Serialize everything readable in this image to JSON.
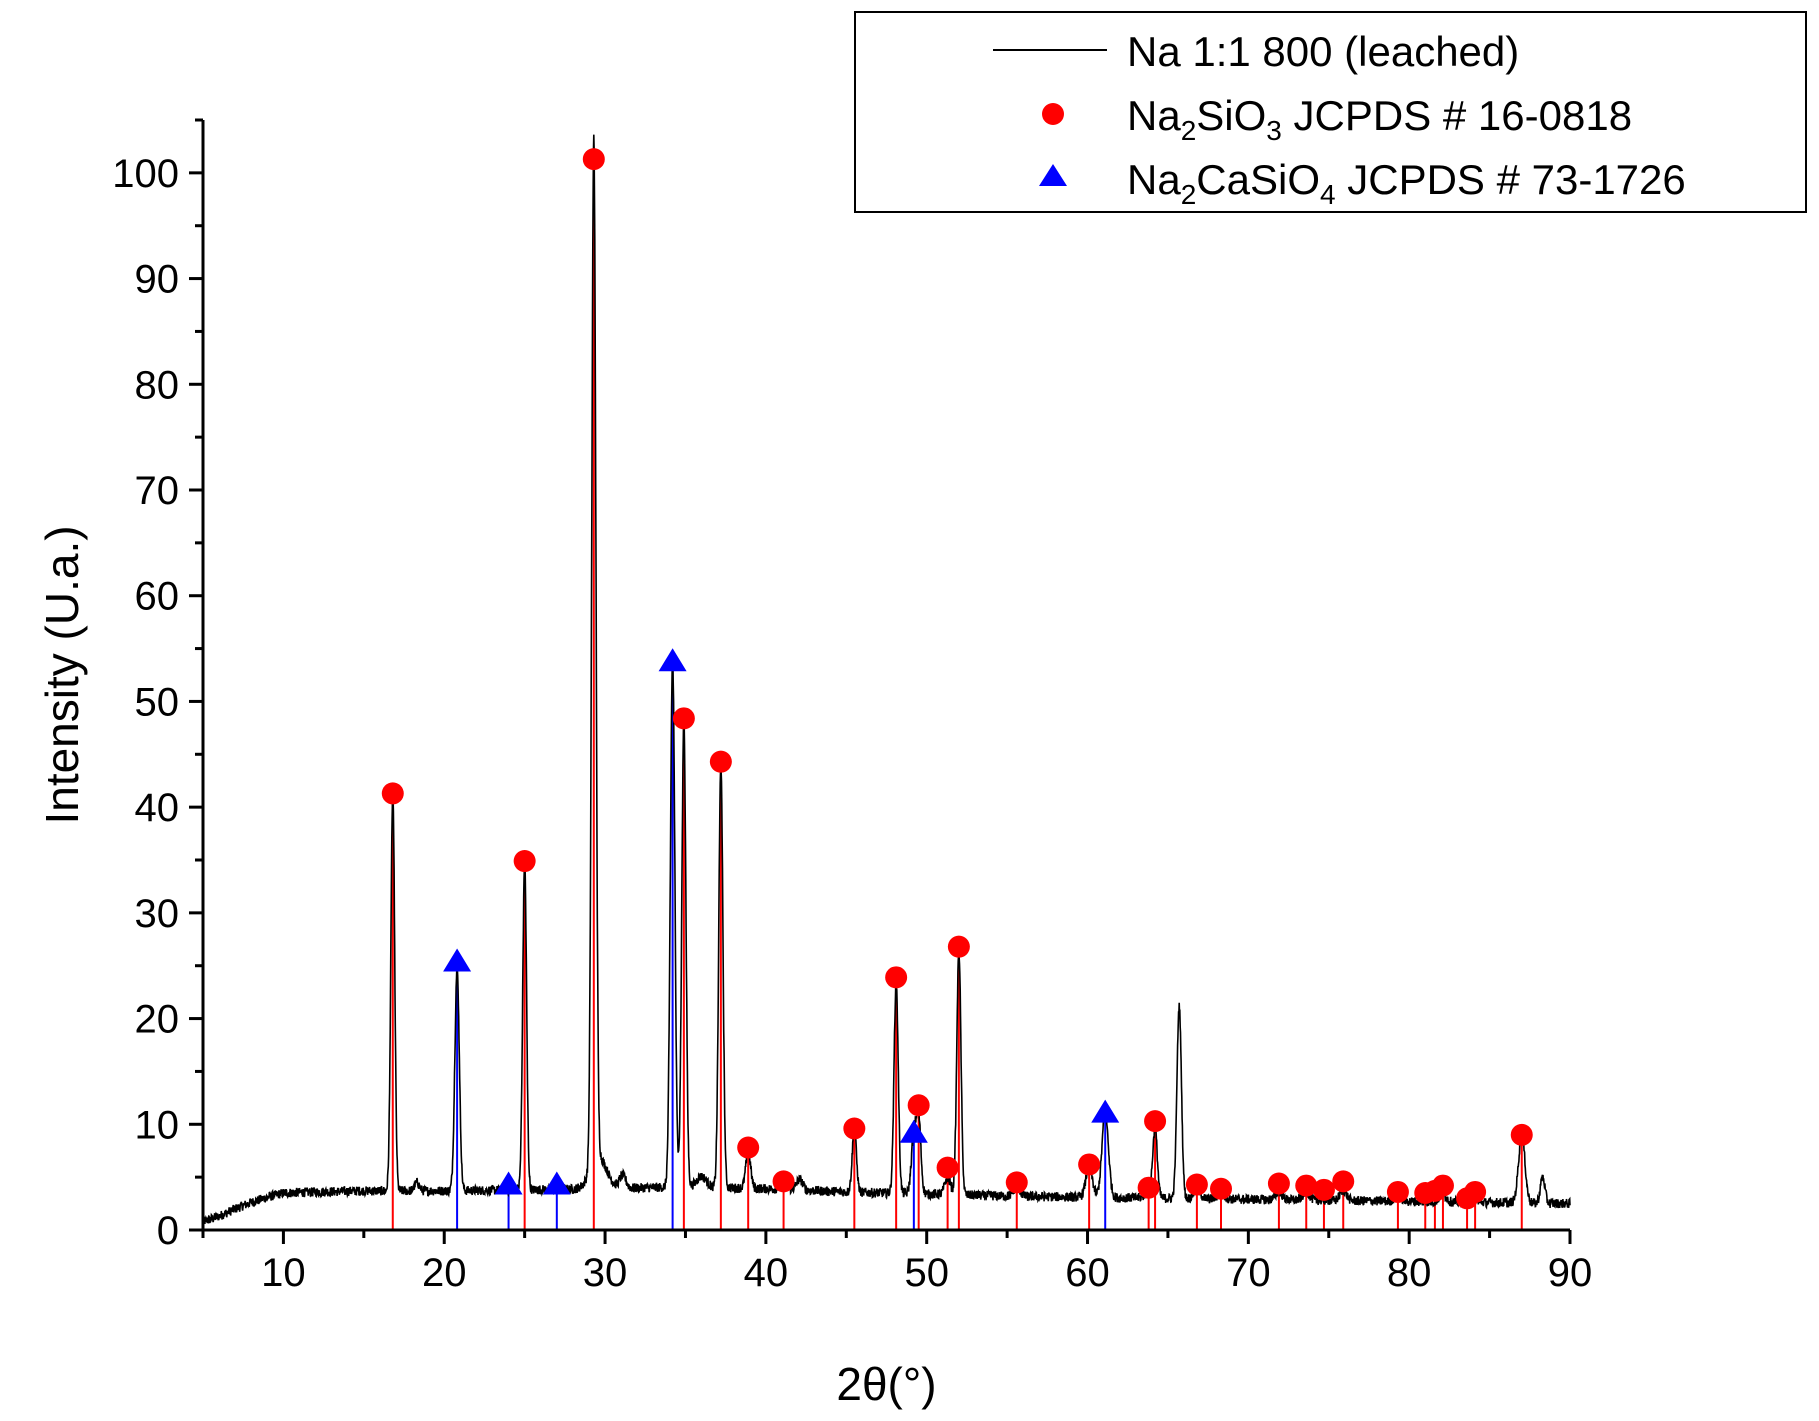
{
  "chart_data": {
    "type": "line",
    "xlabel": "2θ(°)",
    "ylabel": "Intensity (U.a.)",
    "xlim": [
      5,
      90
    ],
    "ylim": [
      0,
      105
    ],
    "x_ticks": [
      "10",
      "20",
      "30",
      "40",
      "50",
      "60",
      "70",
      "80",
      "90"
    ],
    "y_ticks": [
      "0",
      "10",
      "20",
      "30",
      "40",
      "50",
      "60",
      "70",
      "80",
      "90",
      "100"
    ],
    "legend": {
      "position": "top-right",
      "entries": [
        {
          "key": "line",
          "label": "Na 1:1 800 (leached)"
        },
        {
          "key": "na2sio3",
          "parts": [
            {
              "t": "Na",
              "sub": false
            },
            {
              "t": "2",
              "sub": true
            },
            {
              "t": "SiO",
              "sub": false
            },
            {
              "t": "3",
              "sub": true
            },
            {
              "t": " JCPDS # 16-0818",
              "sub": false
            }
          ]
        },
        {
          "key": "na2casio4",
          "parts": [
            {
              "t": "Na",
              "sub": false
            },
            {
              "t": "2",
              "sub": true
            },
            {
              "t": "CaSiO",
              "sub": false
            },
            {
              "t": "4",
              "sub": true
            },
            {
              "t": " JCPDS # 73-1726",
              "sub": false
            }
          ]
        }
      ]
    },
    "colors": {
      "pattern": "#000000",
      "na2sio3": "#ff0000",
      "na2casio4": "#0000ff"
    },
    "series": [
      {
        "name": "Na 1:1 800 (leached)",
        "kind": "pattern",
        "background": [
          [
            5,
            0.8
          ],
          [
            6,
            1.3
          ],
          [
            7,
            2.0
          ],
          [
            8,
            2.6
          ],
          [
            9,
            3.1
          ],
          [
            10,
            3.5
          ],
          [
            12,
            3.6
          ],
          [
            15,
            3.7
          ],
          [
            20,
            3.7
          ],
          [
            25,
            3.8
          ],
          [
            30,
            3.9
          ],
          [
            35,
            4.1
          ],
          [
            40,
            3.9
          ],
          [
            45,
            3.6
          ],
          [
            50,
            3.4
          ],
          [
            55,
            3.2
          ],
          [
            60,
            3.1
          ],
          [
            65,
            3.0
          ],
          [
            70,
            2.9
          ],
          [
            75,
            2.8
          ],
          [
            80,
            2.7
          ],
          [
            85,
            2.6
          ],
          [
            90,
            2.5
          ]
        ],
        "peaks": [
          {
            "x": 16.8,
            "h": 37.5,
            "w": 0.12
          },
          {
            "x": 18.3,
            "h": 0.8,
            "w": 0.15
          },
          {
            "x": 20.8,
            "h": 21.0,
            "w": 0.14
          },
          {
            "x": 25.0,
            "h": 31.0,
            "w": 0.12
          },
          {
            "x": 29.3,
            "h": 97.0,
            "w": 0.13
          },
          {
            "x": 29.6,
            "h": 3.0,
            "w": 0.5
          },
          {
            "x": 31.1,
            "h": 1.2,
            "w": 0.2
          },
          {
            "x": 34.2,
            "h": 50.0,
            "w": 0.14
          },
          {
            "x": 34.9,
            "h": 44.0,
            "w": 0.13
          },
          {
            "x": 36.0,
            "h": 1.0,
            "w": 0.3
          },
          {
            "x": 37.2,
            "h": 40.0,
            "w": 0.13
          },
          {
            "x": 38.9,
            "h": 3.5,
            "w": 0.15
          },
          {
            "x": 41.1,
            "h": 0.8,
            "w": 0.2
          },
          {
            "x": 42.1,
            "h": 1.0,
            "w": 0.2
          },
          {
            "x": 45.5,
            "h": 6.0,
            "w": 0.13
          },
          {
            "x": 48.1,
            "h": 20.0,
            "w": 0.13
          },
          {
            "x": 49.2,
            "h": 5.5,
            "w": 0.15
          },
          {
            "x": 49.5,
            "h": 7.0,
            "w": 0.14
          },
          {
            "x": 51.3,
            "h": 1.6,
            "w": 0.18
          },
          {
            "x": 52.0,
            "h": 23.0,
            "w": 0.13
          },
          {
            "x": 55.6,
            "h": 0.9,
            "w": 0.2
          },
          {
            "x": 60.1,
            "h": 2.9,
            "w": 0.2
          },
          {
            "x": 61.1,
            "h": 8.0,
            "w": 0.2
          },
          {
            "x": 63.8,
            "h": 0.8,
            "w": 0.2
          },
          {
            "x": 64.2,
            "h": 6.5,
            "w": 0.14
          },
          {
            "x": 65.7,
            "h": 18.2,
            "w": 0.14
          },
          {
            "x": 66.8,
            "h": 1.0,
            "w": 0.2
          },
          {
            "x": 68.3,
            "h": 0.6,
            "w": 0.2
          },
          {
            "x": 71.9,
            "h": 0.8,
            "w": 0.2
          },
          {
            "x": 73.6,
            "h": 0.8,
            "w": 0.2
          },
          {
            "x": 75.9,
            "h": 1.0,
            "w": 0.2
          },
          {
            "x": 79.3,
            "h": 0.6,
            "w": 0.2
          },
          {
            "x": 82.1,
            "h": 0.8,
            "w": 0.2
          },
          {
            "x": 84.0,
            "h": 0.6,
            "w": 0.2
          },
          {
            "x": 87.0,
            "h": 6.5,
            "w": 0.2
          },
          {
            "x": 88.3,
            "h": 2.5,
            "w": 0.14
          }
        ]
      },
      {
        "name": "Na2SiO3 JCPDS # 16-0818",
        "kind": "reference",
        "marker": "circle",
        "x": [
          16.8,
          25.0,
          29.3,
          34.9,
          37.2,
          38.9,
          41.1,
          45.5,
          48.1,
          49.5,
          51.3,
          52.0,
          55.6,
          60.1,
          63.8,
          64.2,
          66.8,
          68.3,
          71.9,
          73.6,
          74.7,
          75.9,
          79.3,
          81.0,
          81.6,
          82.1,
          83.6,
          84.1,
          87.0
        ],
        "values": [
          41.3,
          34.9,
          101.3,
          48.4,
          44.3,
          7.8,
          4.6,
          9.6,
          23.9,
          11.8,
          5.9,
          26.8,
          4.5,
          6.2,
          4.0,
          10.3,
          4.3,
          3.9,
          4.4,
          4.2,
          3.8,
          4.6,
          3.6,
          3.5,
          3.7,
          4.2,
          3.0,
          3.6,
          9.0
        ]
      },
      {
        "name": "Na2CaSiO4 JCPDS # 73-1726",
        "kind": "reference",
        "marker": "triangle",
        "x": [
          20.8,
          24.0,
          27.0,
          34.2,
          49.2,
          61.1
        ],
        "values": [
          25.4,
          4.3,
          4.3,
          53.8,
          9.2,
          11.1
        ]
      }
    ]
  }
}
